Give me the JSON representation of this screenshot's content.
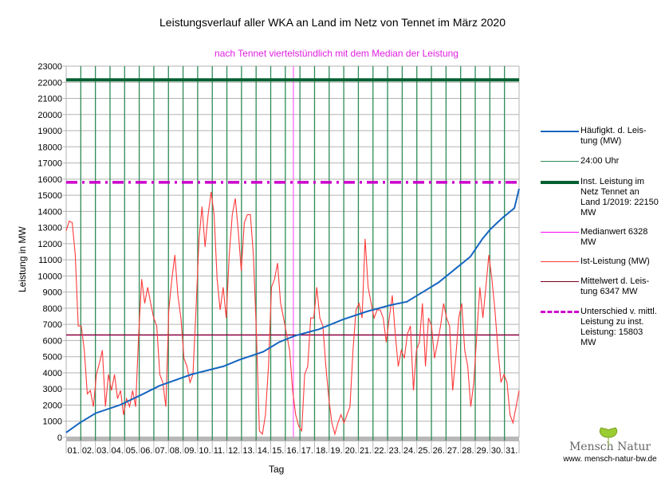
{
  "chart_data": {
    "type": "line",
    "title": "Leistungsverlauf aller WKA an Land im Netz von Tennet im März 2020",
    "subtitle": "nach Tennet viertelstündlich mit dem Median der Leistung",
    "xlabel": "Tag",
    "ylabel": "Leistung in MW",
    "ylim": [
      0,
      23000
    ],
    "xlim": [
      1,
      32
    ],
    "grid": true,
    "legend_position": "right",
    "y_ticks": [
      "0",
      "1000",
      "2000",
      "3000",
      "4000",
      "5000",
      "6000",
      "7000",
      "8000",
      "9000",
      "10000",
      "11000",
      "12000",
      "13000",
      "14000",
      "15000",
      "16000",
      "17000",
      "18000",
      "19000",
      "20000",
      "21000",
      "22000",
      "23000"
    ],
    "x_ticks": [
      "01.",
      "02.",
      "03.",
      "04.",
      "05.",
      "06.",
      "07.",
      "08.",
      "09.",
      "10.",
      "11.",
      "12.",
      "13.",
      "14.",
      "15.",
      "16.",
      "17.",
      "18.",
      "19.",
      "20.",
      "21.",
      "22.",
      "23.",
      "24.",
      "25.",
      "26.",
      "27.",
      "28.",
      "29.",
      "30.",
      "31."
    ],
    "series": [
      {
        "name": "Häufigkt. d. Leis-tung (MW)",
        "color": "#1565c0",
        "points": [
          [
            1.0,
            300
          ],
          [
            1.93,
            900
          ],
          [
            3.02,
            1500
          ],
          [
            4.66,
            2000
          ],
          [
            6.29,
            2700
          ],
          [
            7.39,
            3200
          ],
          [
            9.57,
            3900
          ],
          [
            11.75,
            4400
          ],
          [
            12.85,
            4800
          ],
          [
            14.48,
            5300
          ],
          [
            15.57,
            5900
          ],
          [
            16.67,
            6300
          ],
          [
            18.3,
            6700
          ],
          [
            19.94,
            7300
          ],
          [
            21.58,
            7800
          ],
          [
            23.22,
            8200
          ],
          [
            24.31,
            8400
          ],
          [
            25.4,
            9000
          ],
          [
            26.49,
            9600
          ],
          [
            27.58,
            10400
          ],
          [
            28.67,
            11200
          ],
          [
            29.49,
            12300
          ],
          [
            30.04,
            12900
          ],
          [
            30.86,
            13600
          ],
          [
            31.68,
            14200
          ],
          [
            32.0,
            15400
          ]
        ]
      },
      {
        "name": "Ist-Leistung (MW)",
        "color": "#ff3b3b",
        "values": [
          12800,
          13400,
          13300,
          11300,
          6900,
          6900,
          5400,
          2700,
          2900,
          1900,
          3900,
          4600,
          5400,
          1900,
          3900,
          2900,
          3900,
          2400,
          2900,
          1400,
          2400,
          1900,
          2900,
          1900,
          6400,
          9800,
          8300,
          9300,
          8300,
          7400,
          6900,
          3900,
          3400,
          1900,
          7900,
          9800,
          11300,
          8800,
          7400,
          4900,
          4400,
          3400,
          3900,
          7900,
          12300,
          14300,
          11800,
          13800,
          15200,
          13800,
          9800,
          7900,
          9300,
          7400,
          11300,
          13800,
          14800,
          12800,
          10300,
          13300,
          13800,
          13800,
          11300,
          6400,
          400,
          200,
          1400,
          4400,
          9300,
          9800,
          10800,
          8300,
          7400,
          6400,
          5400,
          2900,
          1400,
          700,
          400,
          3900,
          4400,
          7400,
          7400,
          9300,
          7400,
          6900,
          4400,
          2400,
          900,
          200,
          900,
          1400,
          900,
          1400,
          1900,
          5400,
          7900,
          8300,
          7400,
          12300,
          9300,
          8300,
          7400,
          7900,
          7900,
          7400,
          5900,
          7400,
          8800,
          6400,
          4400,
          5400,
          4900,
          6400,
          6900,
          2900,
          5400,
          5900,
          8300,
          4400,
          7400,
          6900,
          4900,
          5900,
          6900,
          8300,
          7400,
          6900,
          2900,
          4900,
          7400,
          8300,
          5400,
          4400,
          1900,
          3400,
          6400,
          9300,
          7400,
          9300,
          11300,
          9800,
          7900,
          5400,
          3400,
          3900,
          3400,
          1400,
          900,
          1900,
          2900
        ]
      },
      {
        "name": "24:00 Uhr",
        "color": "#2e8b57"
      },
      {
        "name": "Inst. Leistung im Netz Tennet an Land 1/2019: 22150  MW",
        "color": "#006030",
        "value": 22150
      },
      {
        "name": "Medianwert 6328 MW",
        "color": "#ff00ff",
        "value": 6328
      },
      {
        "name": "Mittelwert d. Leis-tung 6347 MW",
        "color": "#7a0020",
        "value": 6347
      },
      {
        "name": "Unterschied v. mittl. Leistung zu inst. Leistung: 15803 MW",
        "color": "#cc00cc",
        "value": 15803
      }
    ]
  },
  "legend": [
    {
      "label": "Häufigkt. d. Leis-tung (MW)"
    },
    {
      "label": "24:00 Uhr"
    },
    {
      "label": "Inst. Leistung im Netz Tennet an Land 1/2019: 22150  MW"
    },
    {
      "label": "Medianwert 6328 MW"
    },
    {
      "label": "Ist-Leistung (MW)"
    },
    {
      "label": "Mittelwert d. Leis-tung 6347 MW"
    },
    {
      "label": "Unterschied v. mittl. Leistung zu inst. Leistung: 15803 MW"
    }
  ],
  "logo": {
    "name": "Mensch Natur",
    "url": "www. mensch-natur-bw.de"
  }
}
